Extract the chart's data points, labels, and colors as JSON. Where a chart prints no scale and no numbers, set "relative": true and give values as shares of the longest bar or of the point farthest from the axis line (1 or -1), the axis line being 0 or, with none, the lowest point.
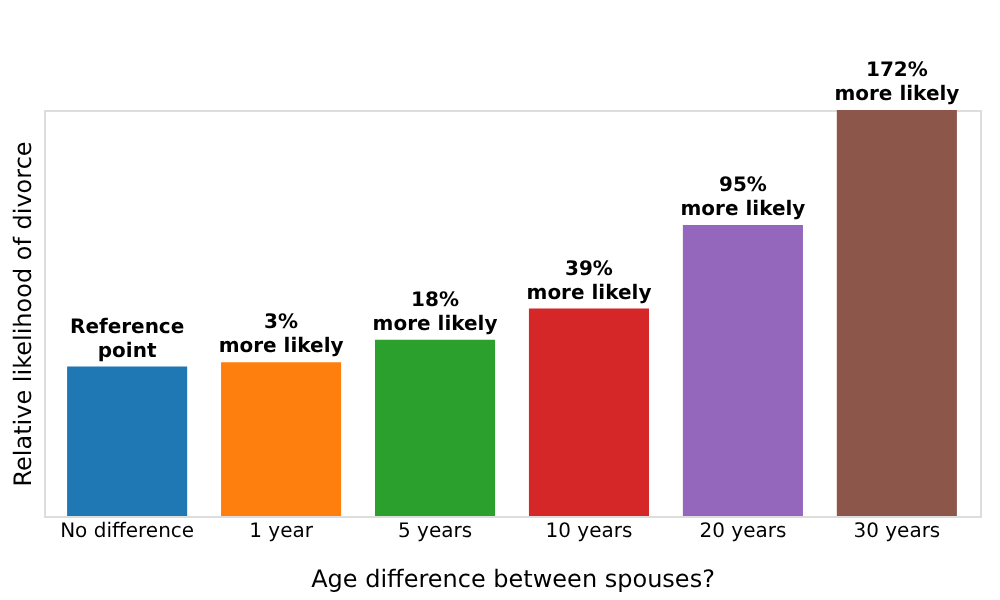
{
  "chart_data": {
    "type": "bar",
    "relative": true,
    "xlabel": "Age difference between spouses?",
    "ylabel": "Relative likelihood of divorce",
    "categories": [
      "No difference",
      "1 year",
      "5 years",
      "10 years",
      "20 years",
      "30 years"
    ],
    "values": [
      0.368,
      0.379,
      0.434,
      0.511,
      0.717,
      1
    ],
    "colors": [
      "#1f77b4",
      "#ff7f0e",
      "#2ca02c",
      "#d62728",
      "#9467bd",
      "#8c564b"
    ],
    "annotations": [
      {
        "text": "Reference point",
        "x": "No difference",
        "y": 0.368
      },
      {
        "text": "3% more likely",
        "x": "1 year",
        "y": 0.379
      },
      {
        "text": "18% more likely",
        "x": "5 years",
        "y": 0.434
      },
      {
        "text": "39% more likely",
        "x": "10 years",
        "y": 0.511
      },
      {
        "text": "95% more likely",
        "x": "20 years",
        "y": 0.717
      },
      {
        "text": "172% more likely",
        "x": "30 years",
        "y": 1
      }
    ],
    "tick_labels": "x",
    "grid": false
  }
}
